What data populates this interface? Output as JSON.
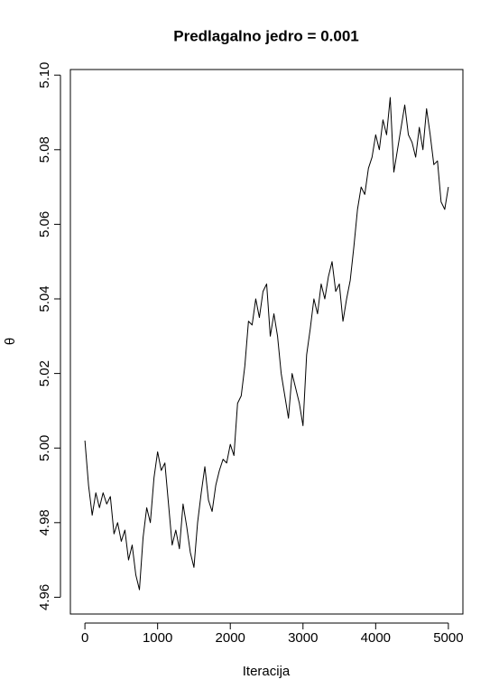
{
  "chart_data": {
    "type": "line",
    "title": "Predlagalno jedro = 0.001",
    "x_label": "Iteracija",
    "y_label": "θ",
    "color": "#000000",
    "x": [
      0,
      50,
      100,
      150,
      200,
      250,
      300,
      350,
      400,
      450,
      500,
      550,
      600,
      650,
      700,
      750,
      800,
      850,
      900,
      950,
      1000,
      1050,
      1100,
      1150,
      1200,
      1250,
      1300,
      1350,
      1400,
      1450,
      1500,
      1550,
      1600,
      1650,
      1700,
      1750,
      1800,
      1850,
      1900,
      1950,
      2000,
      2050,
      2100,
      2150,
      2200,
      2250,
      2300,
      2350,
      2400,
      2450,
      2500,
      2550,
      2600,
      2650,
      2700,
      2750,
      2800,
      2850,
      2900,
      2950,
      3000,
      3050,
      3100,
      3150,
      3200,
      3250,
      3300,
      3350,
      3400,
      3450,
      3500,
      3550,
      3600,
      3650,
      3700,
      3750,
      3800,
      3850,
      3900,
      3950,
      4000,
      4050,
      4100,
      4150,
      4200,
      4250,
      4300,
      4350,
      4400,
      4450,
      4500,
      4550,
      4600,
      4650,
      4700,
      4750,
      4800,
      4850,
      4900,
      4950,
      5000
    ],
    "values": [
      5.002,
      4.99,
      4.982,
      4.988,
      4.984,
      4.988,
      4.985,
      4.987,
      4.977,
      4.98,
      4.975,
      4.978,
      4.97,
      4.974,
      4.966,
      4.962,
      4.976,
      4.984,
      4.98,
      4.992,
      4.999,
      4.994,
      4.996,
      4.985,
      4.974,
      4.978,
      4.973,
      4.985,
      4.979,
      4.972,
      4.968,
      4.98,
      4.988,
      4.995,
      4.986,
      4.983,
      4.99,
      4.994,
      4.997,
      4.996,
      5.001,
      4.998,
      5.012,
      5.014,
      5.022,
      5.034,
      5.033,
      5.04,
      5.035,
      5.042,
      5.044,
      5.03,
      5.036,
      5.03,
      5.02,
      5.014,
      5.008,
      5.02,
      5.016,
      5.012,
      5.006,
      5.025,
      5.032,
      5.04,
      5.036,
      5.044,
      5.04,
      5.046,
      5.05,
      5.042,
      5.044,
      5.034,
      5.04,
      5.045,
      5.054,
      5.064,
      5.07,
      5.068,
      5.075,
      5.078,
      5.084,
      5.08,
      5.088,
      5.084,
      5.094,
      5.074,
      5.08,
      5.086,
      5.092,
      5.084,
      5.082,
      5.078,
      5.086,
      5.08,
      5.091,
      5.084,
      5.076,
      5.077,
      5.066,
      5.064,
      5.07
    ],
    "xlim": [
      -200,
      5200
    ],
    "ylim": [
      4.9555,
      5.1015
    ],
    "xticks": [
      0,
      1000,
      2000,
      3000,
      4000,
      5000
    ],
    "yticks": [
      4.96,
      4.98,
      {
        "value": 5.0,
        "label": "5.00"
      },
      5.02,
      5.04,
      5.06,
      5.08,
      {
        "value": 5.1,
        "label": "5.10"
      }
    ]
  }
}
